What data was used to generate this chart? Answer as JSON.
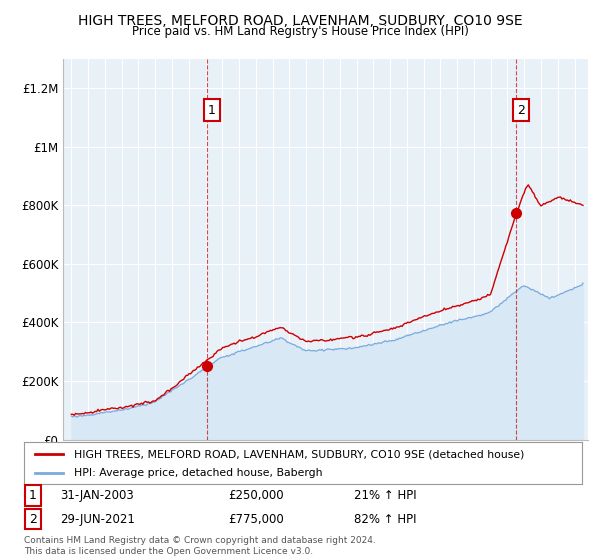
{
  "title": "HIGH TREES, MELFORD ROAD, LAVENHAM, SUDBURY, CO10 9SE",
  "subtitle": "Price paid vs. HM Land Registry's House Price Index (HPI)",
  "legend_property": "HIGH TREES, MELFORD ROAD, LAVENHAM, SUDBURY, CO10 9SE (detached house)",
  "legend_hpi": "HPI: Average price, detached house, Babergh",
  "annotation1_label": "1",
  "annotation1_date": "31-JAN-2003",
  "annotation1_price": "£250,000",
  "annotation1_hpi": "21% ↑ HPI",
  "annotation2_label": "2",
  "annotation2_date": "29-JUN-2021",
  "annotation2_price": "£775,000",
  "annotation2_hpi": "82% ↑ HPI",
  "footer": "Contains HM Land Registry data © Crown copyright and database right 2024.\nThis data is licensed under the Open Government Licence v3.0.",
  "property_color": "#cc0000",
  "hpi_color": "#7aaadd",
  "hpi_fill_color": "#d8e8f5",
  "background_color": "#ffffff",
  "plot_bg_color": "#e8f0f8",
  "grid_color": "#ffffff",
  "sale1_x": 2003.08,
  "sale1_y": 250000,
  "sale2_x": 2021.5,
  "sale2_y": 775000,
  "ylim": [
    0,
    1300000
  ],
  "xlim": [
    1994.5,
    2025.8
  ]
}
